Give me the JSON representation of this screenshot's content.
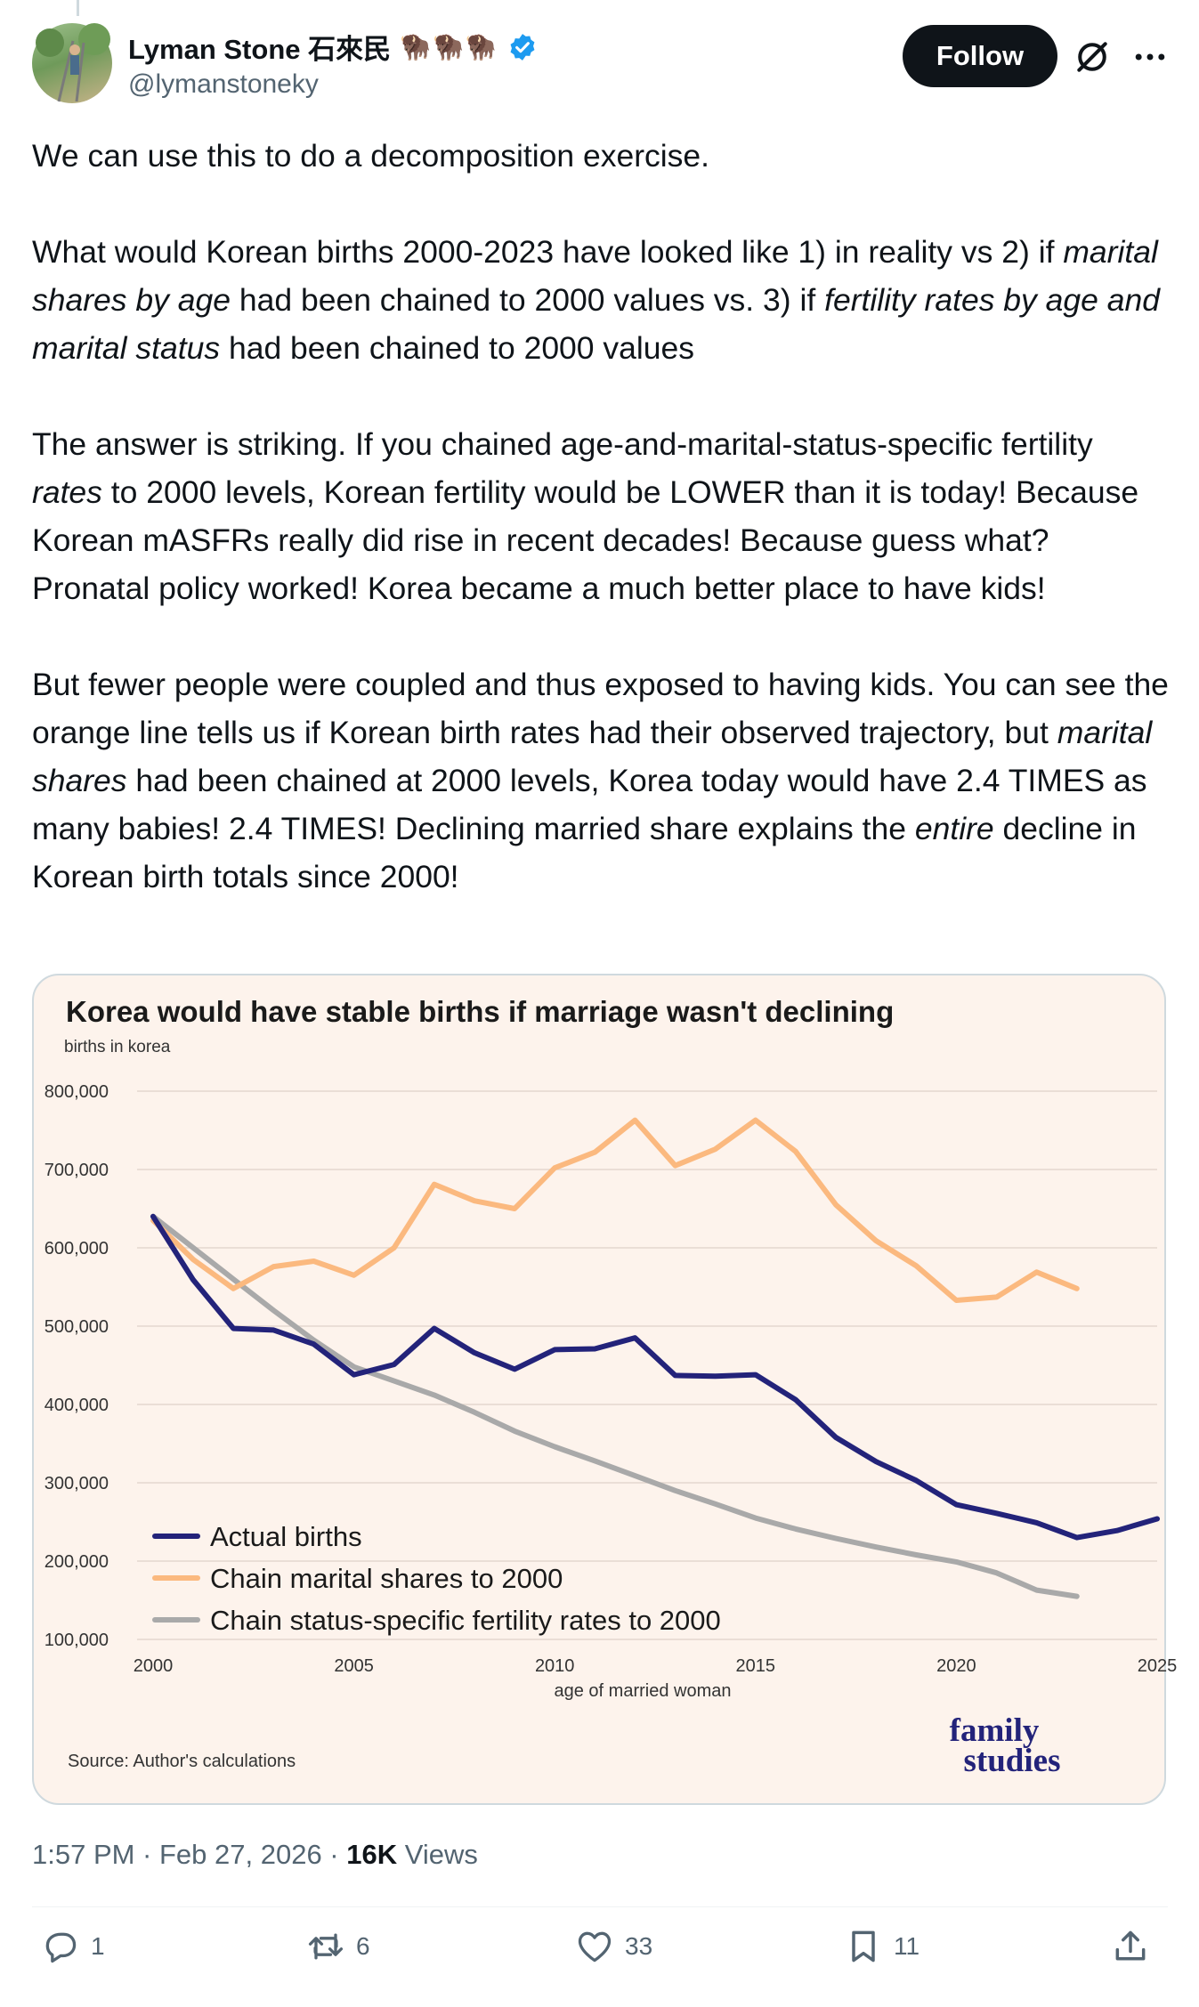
{
  "author": {
    "display_name": "Lyman Stone 石來民",
    "emoji": "🦬🦬🦬",
    "handle": "@lymanstoneky",
    "verified_icon": "verified-badge-icon"
  },
  "follow_label": "Follow",
  "tweet": {
    "p1": "We can use this to do a decomposition exercise.",
    "p2a": "What would Korean births 2000-2023 have looked like 1) in reality vs 2) if ",
    "p2b": "marital shares by age",
    "p2c": " had been chained to 2000 values vs. 3) if ",
    "p2d": "fertility rates by age and marital status",
    "p2e": " had been chained to 2000 values",
    "p3a": "The answer is striking. If you chained age-and-marital-status-specific fertility ",
    "p3b": "rates",
    "p3c": " to 2000 levels, Korean fertility would be LOWER than it is today! Because Korean mASFRs really did rise in recent decades! Because guess what? Pronatal policy worked! Korea became a much better place to have kids!",
    "p4a": "But fewer people were coupled and thus exposed to having kids. You can see the orange line tells us if Korean birth rates had their observed trajectory, but ",
    "p4b": "marital shares",
    "p4c": " had been chained at 2000 levels, Korea today would have 2.4 TIMES as many babies! 2.4 TIMES! Declining married share explains the ",
    "p4d": "entire",
    "p4e": " decline in Korean birth totals since 2000!"
  },
  "meta": {
    "time": "1:57 PM · Feb 27, 2026 · ",
    "views_count": "16K",
    "views_label": " Views"
  },
  "actions": {
    "replies": "1",
    "reposts": "6",
    "likes": "33",
    "bookmarks": "11"
  },
  "chart_data": {
    "type": "line",
    "title": "Korea would have stable births if marriage wasn't declining",
    "subtitle": "births in korea",
    "xlabel": "age of married woman",
    "source": "Source: Author's calculations",
    "brand_line1": "family",
    "brand_line2": "studies",
    "xlim": [
      2000,
      2025
    ],
    "ylim": [
      100000,
      800000
    ],
    "x_ticks": [
      "2000",
      "2005",
      "2010",
      "2015",
      "2020",
      "2025"
    ],
    "y_ticks": [
      "800,000",
      "700,000",
      "600,000",
      "500,000",
      "400,000",
      "300,000",
      "200,000",
      "100,000"
    ],
    "legend_position": "bottom-left",
    "series": [
      {
        "name": "Actual births",
        "color": "#23237a",
        "x": [
          2000,
          2001,
          2002,
          2003,
          2004,
          2005,
          2006,
          2007,
          2008,
          2009,
          2010,
          2011,
          2012,
          2013,
          2014,
          2015,
          2016,
          2017,
          2018,
          2019,
          2020,
          2021,
          2022,
          2023,
          2024,
          2025
        ],
        "values": [
          640000,
          559000,
          497000,
          495000,
          477000,
          438000,
          451000,
          497000,
          466000,
          445000,
          470000,
          471000,
          485000,
          437000,
          436000,
          438000,
          406000,
          358000,
          327000,
          303000,
          272000,
          261000,
          249000,
          230000,
          239000,
          254000
        ]
      },
      {
        "name": "Chain marital shares to 2000",
        "color": "#fbb97f",
        "x": [
          2000,
          2001,
          2002,
          2003,
          2004,
          2005,
          2006,
          2007,
          2008,
          2009,
          2010,
          2011,
          2012,
          2013,
          2014,
          2015,
          2016,
          2017,
          2018,
          2019,
          2020,
          2021,
          2022,
          2023
        ],
        "values": [
          635000,
          585000,
          548000,
          576000,
          583000,
          565000,
          600000,
          681000,
          660000,
          650000,
          702000,
          722000,
          763000,
          705000,
          726000,
          763000,
          723000,
          655000,
          609000,
          577000,
          533000,
          537000,
          569000,
          548000
        ]
      },
      {
        "name": "Chain status-specific fertility rates to 2000",
        "color": "#a9a9a9",
        "x": [
          2000,
          2001,
          2002,
          2003,
          2004,
          2005,
          2006,
          2007,
          2008,
          2009,
          2010,
          2011,
          2012,
          2013,
          2014,
          2015,
          2016,
          2017,
          2018,
          2019,
          2020,
          2021,
          2022,
          2023
        ],
        "values": [
          640000,
          600000,
          560000,
          520000,
          482000,
          448000,
          430000,
          412000,
          390000,
          366000,
          346000,
          328000,
          309000,
          290000,
          273000,
          255000,
          241000,
          229000,
          218000,
          208000,
          199000,
          185000,
          163000,
          155000
        ]
      }
    ]
  }
}
